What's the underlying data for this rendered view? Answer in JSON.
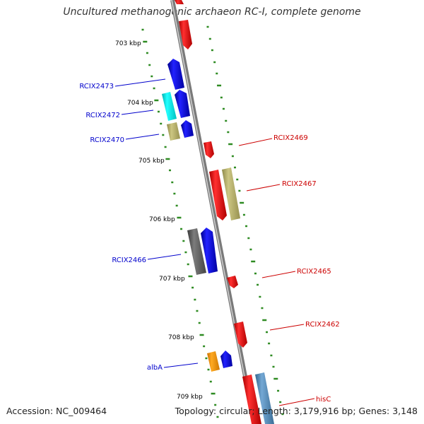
{
  "title": "Uncultured methanogenic archaeon RC-I, complete genome",
  "footer": {
    "accession": "Accession: NC_009464",
    "summary": "Topology: circular; Length: 3,179,916 bp; Genes: 3,148"
  },
  "colors": {
    "backbone": "#8c8c8c",
    "forward_label": "#0000cc",
    "reverse_label": "#cc0000",
    "tick": "#2e8b22"
  },
  "kbp_labels": [
    "703 kbp",
    "704 kbp",
    "705 kbp",
    "706 kbp",
    "707 kbp",
    "708 kbp",
    "709 kbp"
  ],
  "gene_labels_left": [
    "RCIX2473",
    "RCIX2472",
    "RCIX2470",
    "RCIX2466",
    "albA"
  ],
  "gene_labels_right": [
    "RCIX2469",
    "RCIX2467",
    "RCIX2465",
    "RCIX2462",
    "hisC"
  ]
}
